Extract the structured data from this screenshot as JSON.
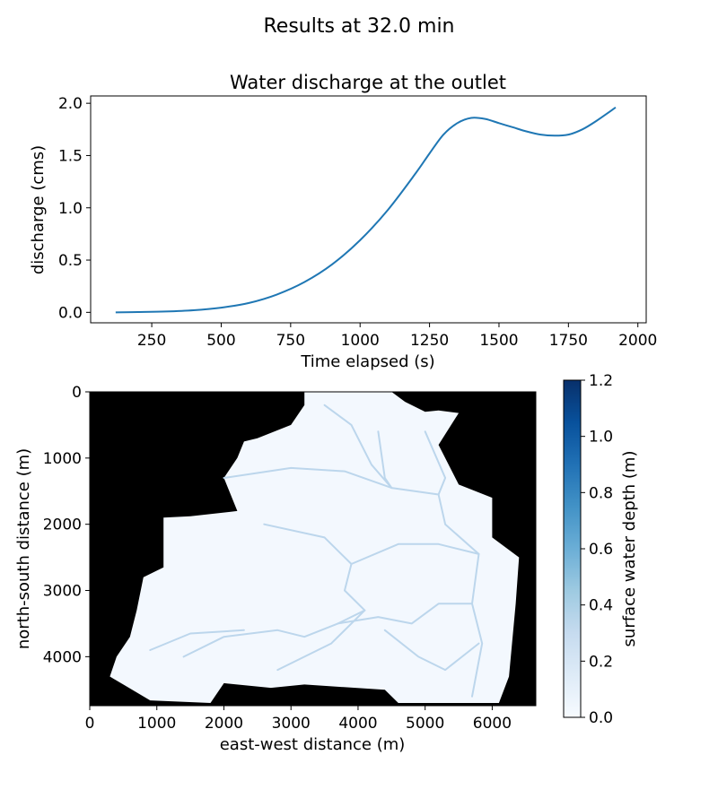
{
  "figure": {
    "suptitle": "Results at 32.0 min"
  },
  "chart_data": [
    {
      "type": "line",
      "title": "Water discharge at the outlet",
      "xlabel": "Time elapsed (s)",
      "ylabel": "discharge (cms)",
      "xlim": [
        30,
        2030
      ],
      "ylim": [
        -0.1,
        2.07
      ],
      "xticks": [
        250,
        500,
        750,
        1000,
        1250,
        1500,
        1750,
        2000
      ],
      "yticks": [
        0.0,
        0.5,
        1.0,
        1.5,
        2.0
      ],
      "xtick_labels": [
        "250",
        "500",
        "750",
        "1000",
        "1250",
        "1500",
        "1750",
        "2000"
      ],
      "ytick_labels": [
        "0.0",
        "0.5",
        "1.0",
        "1.5",
        "2.0"
      ],
      "series": [
        {
          "name": "discharge",
          "color": "#1f77b4",
          "x": [
            120,
            200,
            300,
            400,
            500,
            600,
            700,
            800,
            900,
            1000,
            1100,
            1200,
            1250,
            1300,
            1350,
            1400,
            1450,
            1500,
            1550,
            1600,
            1650,
            1700,
            1750,
            1800,
            1850,
            1920
          ],
          "y": [
            0.0,
            0.003,
            0.008,
            0.02,
            0.045,
            0.09,
            0.17,
            0.29,
            0.46,
            0.69,
            0.98,
            1.33,
            1.52,
            1.7,
            1.81,
            1.86,
            1.85,
            1.81,
            1.77,
            1.73,
            1.7,
            1.69,
            1.7,
            1.75,
            1.83,
            1.96
          ]
        }
      ]
    },
    {
      "type": "heatmap",
      "title": "",
      "xlabel": "east-west distance (m)",
      "ylabel": "north-south distance (m)",
      "xlim": [
        0,
        6650
      ],
      "ylim": [
        4740,
        0
      ],
      "xticks": [
        0,
        1000,
        2000,
        3000,
        4000,
        5000,
        6000
      ],
      "yticks": [
        0,
        1000,
        2000,
        3000,
        4000
      ],
      "xtick_labels": [
        "0",
        "1000",
        "2000",
        "3000",
        "4000",
        "5000",
        "6000"
      ],
      "ytick_labels": [
        "0",
        "1000",
        "2000",
        "3000",
        "4000"
      ],
      "colormap": "Blues",
      "background_color": "#000000",
      "watershed_fill_color": "#f3f8fe",
      "channel_color": "#bcd6ec",
      "colorbar": {
        "label": "surface water depth (m)",
        "range": [
          0.0,
          1.2
        ],
        "ticks": [
          0.0,
          0.2,
          0.4,
          0.6,
          0.8,
          1.0,
          1.2
        ],
        "tick_labels": [
          "0.0",
          "0.2",
          "0.4",
          "0.6",
          "0.8",
          "1.0",
          "1.2"
        ],
        "colors": [
          "#f7fbff",
          "#deebf7",
          "#c6dbef",
          "#9ecae1",
          "#6baed6",
          "#4292c6",
          "#2171b5",
          "#08519c",
          "#08306b"
        ]
      },
      "watershed_outline": [
        [
          3200,
          0
        ],
        [
          4500,
          0
        ],
        [
          4700,
          150
        ],
        [
          5000,
          300
        ],
        [
          5200,
          280
        ],
        [
          5500,
          320
        ],
        [
          5200,
          800
        ],
        [
          5500,
          1400
        ],
        [
          6000,
          1600
        ],
        [
          6000,
          2200
        ],
        [
          6400,
          2500
        ],
        [
          6350,
          3200
        ],
        [
          6250,
          4300
        ],
        [
          6100,
          4700
        ],
        [
          4600,
          4700
        ],
        [
          4400,
          4500
        ],
        [
          3200,
          4420
        ],
        [
          2700,
          4470
        ],
        [
          2000,
          4400
        ],
        [
          1800,
          4700
        ],
        [
          900,
          4660
        ],
        [
          500,
          4420
        ],
        [
          300,
          4300
        ],
        [
          400,
          4000
        ],
        [
          600,
          3700
        ],
        [
          700,
          3300
        ],
        [
          800,
          2800
        ],
        [
          1100,
          2650
        ],
        [
          1100,
          1900
        ],
        [
          1500,
          1880
        ],
        [
          2200,
          1800
        ],
        [
          2000,
          1300
        ],
        [
          2200,
          1000
        ],
        [
          2300,
          750
        ],
        [
          2500,
          700
        ],
        [
          3000,
          500
        ],
        [
          3200,
          200
        ]
      ],
      "channels": [
        [
          [
            3500,
            200
          ],
          [
            3900,
            500
          ],
          [
            4200,
            1100
          ],
          [
            4500,
            1450
          ],
          [
            5200,
            1550
          ],
          [
            5300,
            2000
          ],
          [
            5800,
            2450
          ],
          [
            5700,
            3200
          ],
          [
            5850,
            3800
          ],
          [
            5700,
            4600
          ]
        ],
        [
          [
            1400,
            4000
          ],
          [
            2000,
            3700
          ],
          [
            2800,
            3600
          ],
          [
            3200,
            3700
          ],
          [
            3700,
            3500
          ],
          [
            4100,
            3300
          ],
          [
            3800,
            3000
          ],
          [
            3900,
            2600
          ],
          [
            4600,
            2300
          ],
          [
            5200,
            2300
          ],
          [
            5800,
            2450
          ]
        ],
        [
          [
            3900,
            2600
          ],
          [
            3500,
            2200
          ],
          [
            2600,
            2000
          ]
        ],
        [
          [
            3700,
            3500
          ],
          [
            4300,
            3400
          ],
          [
            4800,
            3500
          ],
          [
            5200,
            3200
          ],
          [
            5700,
            3200
          ]
        ],
        [
          [
            2000,
            1300
          ],
          [
            3000,
            1150
          ],
          [
            3800,
            1200
          ],
          [
            4500,
            1450
          ]
        ],
        [
          [
            5000,
            600
          ],
          [
            5300,
            1300
          ],
          [
            5200,
            1550
          ]
        ],
        [
          [
            900,
            3900
          ],
          [
            1500,
            3650
          ],
          [
            2300,
            3600
          ]
        ],
        [
          [
            2800,
            4200
          ],
          [
            3600,
            3800
          ],
          [
            4100,
            3300
          ]
        ],
        [
          [
            4300,
            600
          ],
          [
            4400,
            1300
          ],
          [
            4500,
            1450
          ]
        ],
        [
          [
            4400,
            3600
          ],
          [
            4900,
            4000
          ],
          [
            5300,
            4200
          ],
          [
            5800,
            3800
          ]
        ]
      ]
    }
  ]
}
